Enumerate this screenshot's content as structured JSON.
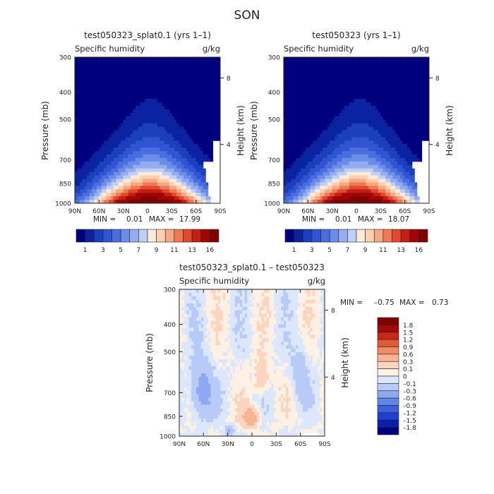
{
  "figure_title": "SON",
  "chart_data": [
    {
      "type": "heatmap",
      "title": "test050323_splat0.1 (yrs 1–1)",
      "variable": "Specific humidity",
      "units": "g/kg",
      "xlabel": "",
      "ylabel": "Pressure (mb)",
      "y2label": "Height (km)",
      "x_ticks": [
        "90N",
        "60N",
        "30N",
        "0",
        "30S",
        "60S",
        "90S"
      ],
      "y_ticks": [
        "300",
        "400",
        "500",
        "700",
        "850",
        "1000"
      ],
      "y2_ticks": [
        "8",
        "4"
      ],
      "ylim": [
        1000,
        300
      ],
      "xlim": [
        90,
        -90
      ],
      "min_label": "MIN =",
      "min_value": "0.01",
      "max_label": "MAX =",
      "max_value": "17.99",
      "levels": [
        1,
        2,
        3,
        4,
        5,
        6,
        7,
        8,
        9,
        10,
        11,
        12,
        13,
        14,
        16
      ],
      "colorbar_labels": [
        "1",
        "3",
        "5",
        "7",
        "9",
        "11",
        "13",
        "16"
      ],
      "colors": [
        "#00007f",
        "#0a23a0",
        "#1c3fbd",
        "#3055d2",
        "#4a6ee0",
        "#6c8ce9",
        "#95adf0",
        "#bfd0f7",
        "#fdebd9",
        "#fbcfb0",
        "#f6a882",
        "#ee7a55",
        "#e0492f",
        "#c51f14",
        "#a10606",
        "#7f0000"
      ],
      "peak_lat": -5,
      "peak_value": 17.99
    },
    {
      "type": "heatmap",
      "title": "test050323 (yrs 1–1)",
      "variable": "Specific humidity",
      "units": "g/kg",
      "xlabel": "",
      "ylabel": "Pressure (mb)",
      "y2label": "Height (km)",
      "x_ticks": [
        "90N",
        "60N",
        "30N",
        "0",
        "30S",
        "60S",
        "90S"
      ],
      "y_ticks": [
        "300",
        "400",
        "500",
        "700",
        "850",
        "1000"
      ],
      "y2_ticks": [
        "8",
        "4"
      ],
      "ylim": [
        1000,
        300
      ],
      "xlim": [
        90,
        -90
      ],
      "min_label": "MIN =",
      "min_value": "0.01",
      "max_label": "MAX =",
      "max_value": "18.07",
      "levels": [
        1,
        2,
        3,
        4,
        5,
        6,
        7,
        8,
        9,
        10,
        11,
        12,
        13,
        14,
        16
      ],
      "colorbar_labels": [
        "1",
        "3",
        "5",
        "7",
        "9",
        "11",
        "13",
        "16"
      ],
      "colors": [
        "#00007f",
        "#0a23a0",
        "#1c3fbd",
        "#3055d2",
        "#4a6ee0",
        "#6c8ce9",
        "#95adf0",
        "#bfd0f7",
        "#fdebd9",
        "#fbcfb0",
        "#f6a882",
        "#ee7a55",
        "#e0492f",
        "#c51f14",
        "#a10606",
        "#7f0000"
      ],
      "peak_lat": -5,
      "peak_value": 18.07
    },
    {
      "type": "heatmap",
      "title": "test050323_splat0.1 – test050323",
      "variable": "Specific humidity",
      "units": "g/kg",
      "xlabel": "",
      "ylabel": "Pressure (mb)",
      "y2label": "Height (km)",
      "x_ticks": [
        "90N",
        "60N",
        "30N",
        "0",
        "30S",
        "60S",
        "90S"
      ],
      "y_ticks": [
        "300",
        "400",
        "500",
        "700",
        "850",
        "1000"
      ],
      "y2_ticks": [
        "8",
        "4"
      ],
      "ylim": [
        1000,
        300
      ],
      "xlim": [
        90,
        -90
      ],
      "min_label": "MIN =",
      "min_value": "–0.75",
      "max_label": "MAX =",
      "max_value": "0.73",
      "levels": [
        -1.8,
        -1.5,
        -1.2,
        -0.9,
        -0.6,
        -0.3,
        -0.1,
        0,
        0.1,
        0.3,
        0.6,
        0.9,
        1.2,
        1.5,
        1.8
      ],
      "colorbar_labels": [
        "1.8",
        "1.5",
        "1.2",
        "0.9",
        "0.6",
        "0.3",
        "0.1",
        "0",
        "–0.1",
        "–0.3",
        "–0.6",
        "–0.9",
        "–1.2",
        "–1.5",
        "–1.8"
      ],
      "colors": [
        "#00007f",
        "#0a1fa8",
        "#1f3fcf",
        "#3b5fe0",
        "#6385ea",
        "#8ea8f1",
        "#b8cbf6",
        "#dce7fb",
        "#fdf0e4",
        "#fbd5bd",
        "#f7b393",
        "#f08b66",
        "#e35a38",
        "#c9271a",
        "#a30808",
        "#7f0000"
      ]
    }
  ]
}
